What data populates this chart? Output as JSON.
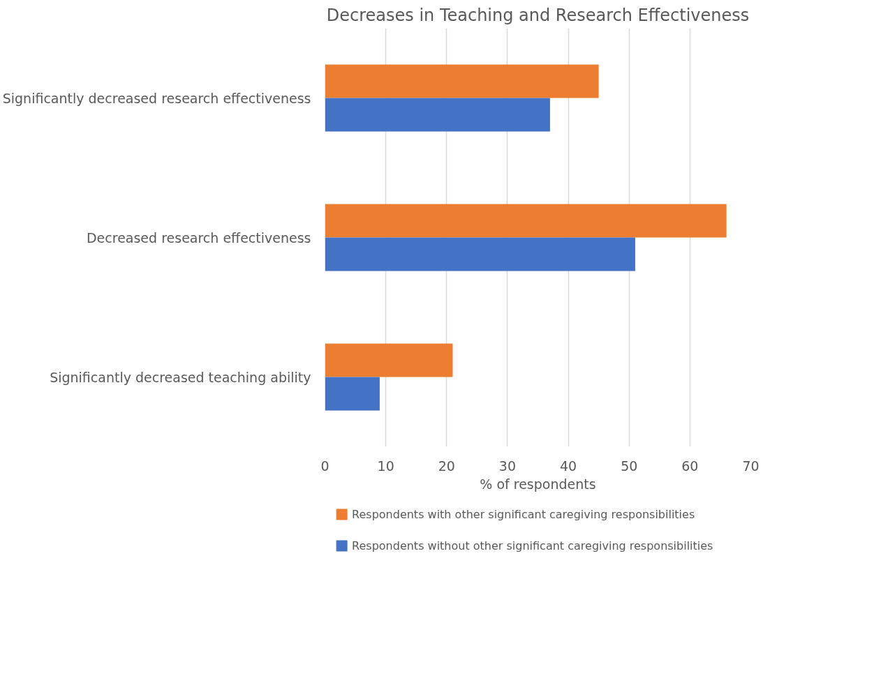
{
  "chart_data": {
    "type": "bar",
    "orientation": "horizontal",
    "title": "Decreases in Teaching and Research Effectiveness",
    "xlabel": "% of respondents",
    "categories": [
      "Significantly decreased research effectiveness",
      "Decreased research effectiveness",
      "Significantly decreased teaching ability"
    ],
    "series": [
      {
        "name": "Respondents with other significant caregiving responsibilities",
        "color": "#ed7d31",
        "values": [
          45,
          66,
          21
        ]
      },
      {
        "name": "Respondents without other significant caregiving responsibilities",
        "color": "#4472c4",
        "values": [
          37,
          51,
          9
        ]
      }
    ],
    "xlim": [
      0,
      70
    ],
    "xticks": [
      0,
      10,
      20,
      30,
      40,
      50,
      60,
      70
    ],
    "grid": "x",
    "legend": "bottom"
  }
}
